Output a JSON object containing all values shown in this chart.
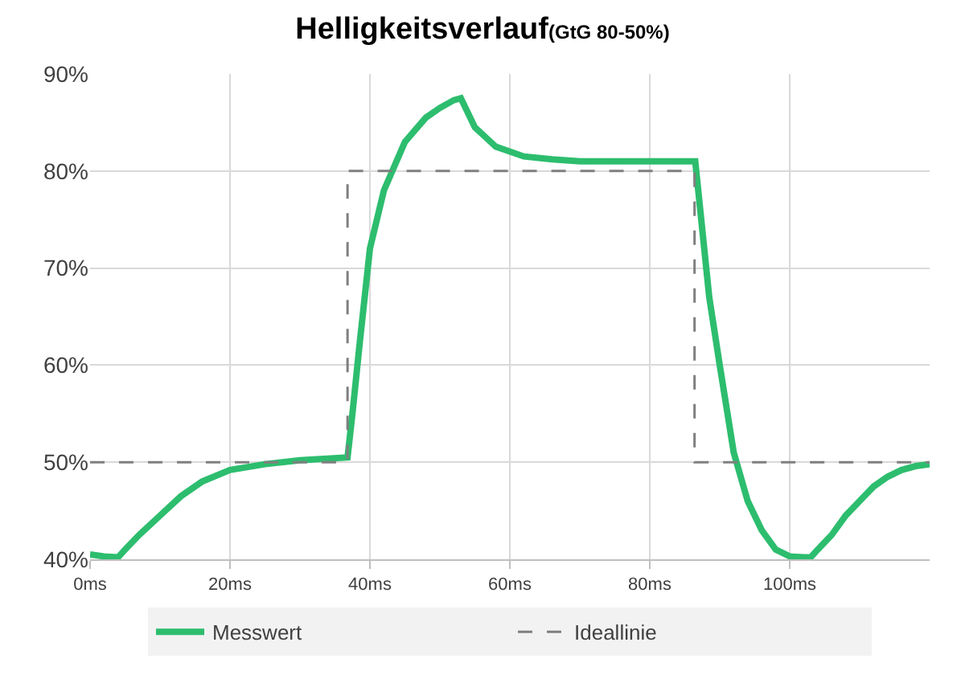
{
  "chart_data": {
    "type": "line",
    "title": "Helligkeitsverlauf",
    "subtitle": "(GtG 80-50%)",
    "series": [
      {
        "name": "Messwert",
        "color": "#2dbd6e",
        "line_style": "solid",
        "x": [
          0,
          2,
          4,
          5,
          7,
          10,
          13,
          16,
          20,
          25,
          30,
          36.8,
          37.5,
          38.5,
          40,
          42,
          45,
          48,
          50,
          52,
          53,
          55,
          58,
          62,
          66,
          70,
          75,
          80,
          86.5,
          87.5,
          88.5,
          90,
          92,
          94,
          96,
          98,
          100,
          102,
          103,
          104,
          106,
          108,
          110,
          112,
          114,
          116,
          118,
          120
        ],
        "values": [
          40.5,
          40.3,
          40.2,
          41,
          42.5,
          44.5,
          46.5,
          48,
          49.2,
          49.8,
          50.2,
          50.5,
          55,
          62,
          72,
          78,
          83,
          85.5,
          86.5,
          87.3,
          87.5,
          84.5,
          82.5,
          81.5,
          81.2,
          81,
          81,
          81,
          81,
          74,
          67,
          60,
          51,
          46,
          43,
          41,
          40.3,
          40.2,
          40.2,
          41,
          42.5,
          44.5,
          46,
          47.5,
          48.5,
          49.2,
          49.6,
          49.8
        ]
      },
      {
        "name": "Ideallinie",
        "color": "#7f7f7f",
        "line_style": "dashed",
        "x": [
          0,
          36.8,
          36.8,
          86.4,
          86.4,
          120
        ],
        "values": [
          50,
          50,
          80,
          80,
          50,
          50
        ]
      }
    ],
    "xlim": [
      0,
      120
    ],
    "xticks": [
      {
        "value": 0,
        "label": "0ms"
      },
      {
        "value": 20,
        "label": "20ms"
      },
      {
        "value": 40,
        "label": "40ms"
      },
      {
        "value": 60,
        "label": "60ms"
      },
      {
        "value": 80,
        "label": "80ms"
      },
      {
        "value": 100,
        "label": "100ms"
      }
    ],
    "ylim": [
      40,
      90
    ],
    "yticks": [
      {
        "value": 40,
        "label": "40%"
      },
      {
        "value": 50,
        "label": "50%"
      },
      {
        "value": 60,
        "label": "60%"
      },
      {
        "value": 70,
        "label": "70%"
      },
      {
        "value": 80,
        "label": "80%"
      },
      {
        "value": 90,
        "label": "90%"
      }
    ],
    "grid": true,
    "legend": "bottom",
    "marker": "none"
  }
}
